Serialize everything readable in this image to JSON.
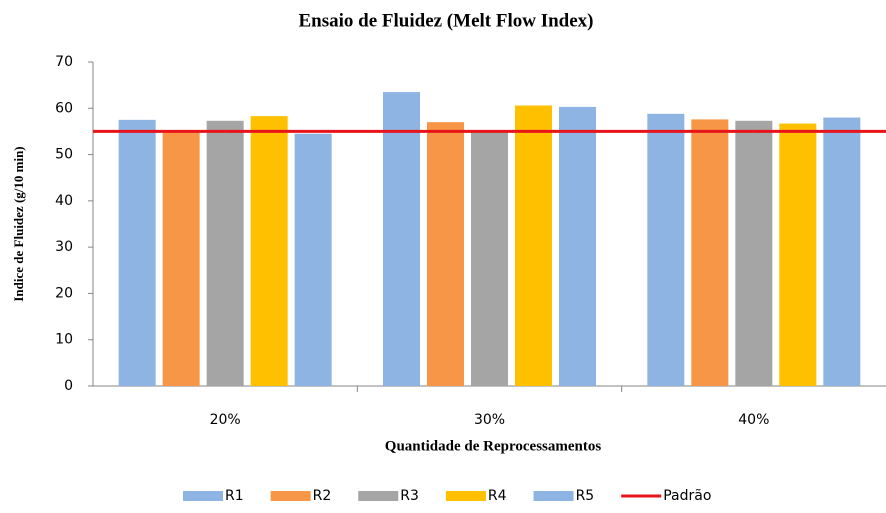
{
  "chart_data": {
    "type": "bar",
    "title": "Ensaio de Fluidez (Melt Flow Index)",
    "x_label": "Quantidade de Reprocessamentos",
    "y_label": "Indice de Fluidez (g/10 min)",
    "categories": [
      "20%",
      "30%",
      "40%"
    ],
    "series": [
      {
        "name": "R1",
        "color": "#8eb4e3",
        "values": [
          57.5,
          63.5,
          58.8
        ]
      },
      {
        "name": "R2",
        "color": "#f79646",
        "values": [
          55,
          57,
          57.6
        ]
      },
      {
        "name": "R3",
        "color": "#a5a5a5",
        "values": [
          57.3,
          55,
          57.3
        ]
      },
      {
        "name": "R4",
        "color": "#ffc000",
        "values": [
          58.3,
          60.6,
          56.7
        ]
      },
      {
        "name": "R5",
        "color": "#8eb4e3",
        "values": [
          54.5,
          60.3,
          58
        ]
      },
      {
        "name": "Padrão",
        "color": "#e8141c",
        "type": "line",
        "values": [
          55,
          55,
          55
        ]
      }
    ],
    "ylim": [
      0,
      70
    ],
    "yticks": [
      0,
      10,
      20,
      30,
      40,
      50,
      60,
      70
    ],
    "grid": false,
    "legend": "bottom"
  }
}
